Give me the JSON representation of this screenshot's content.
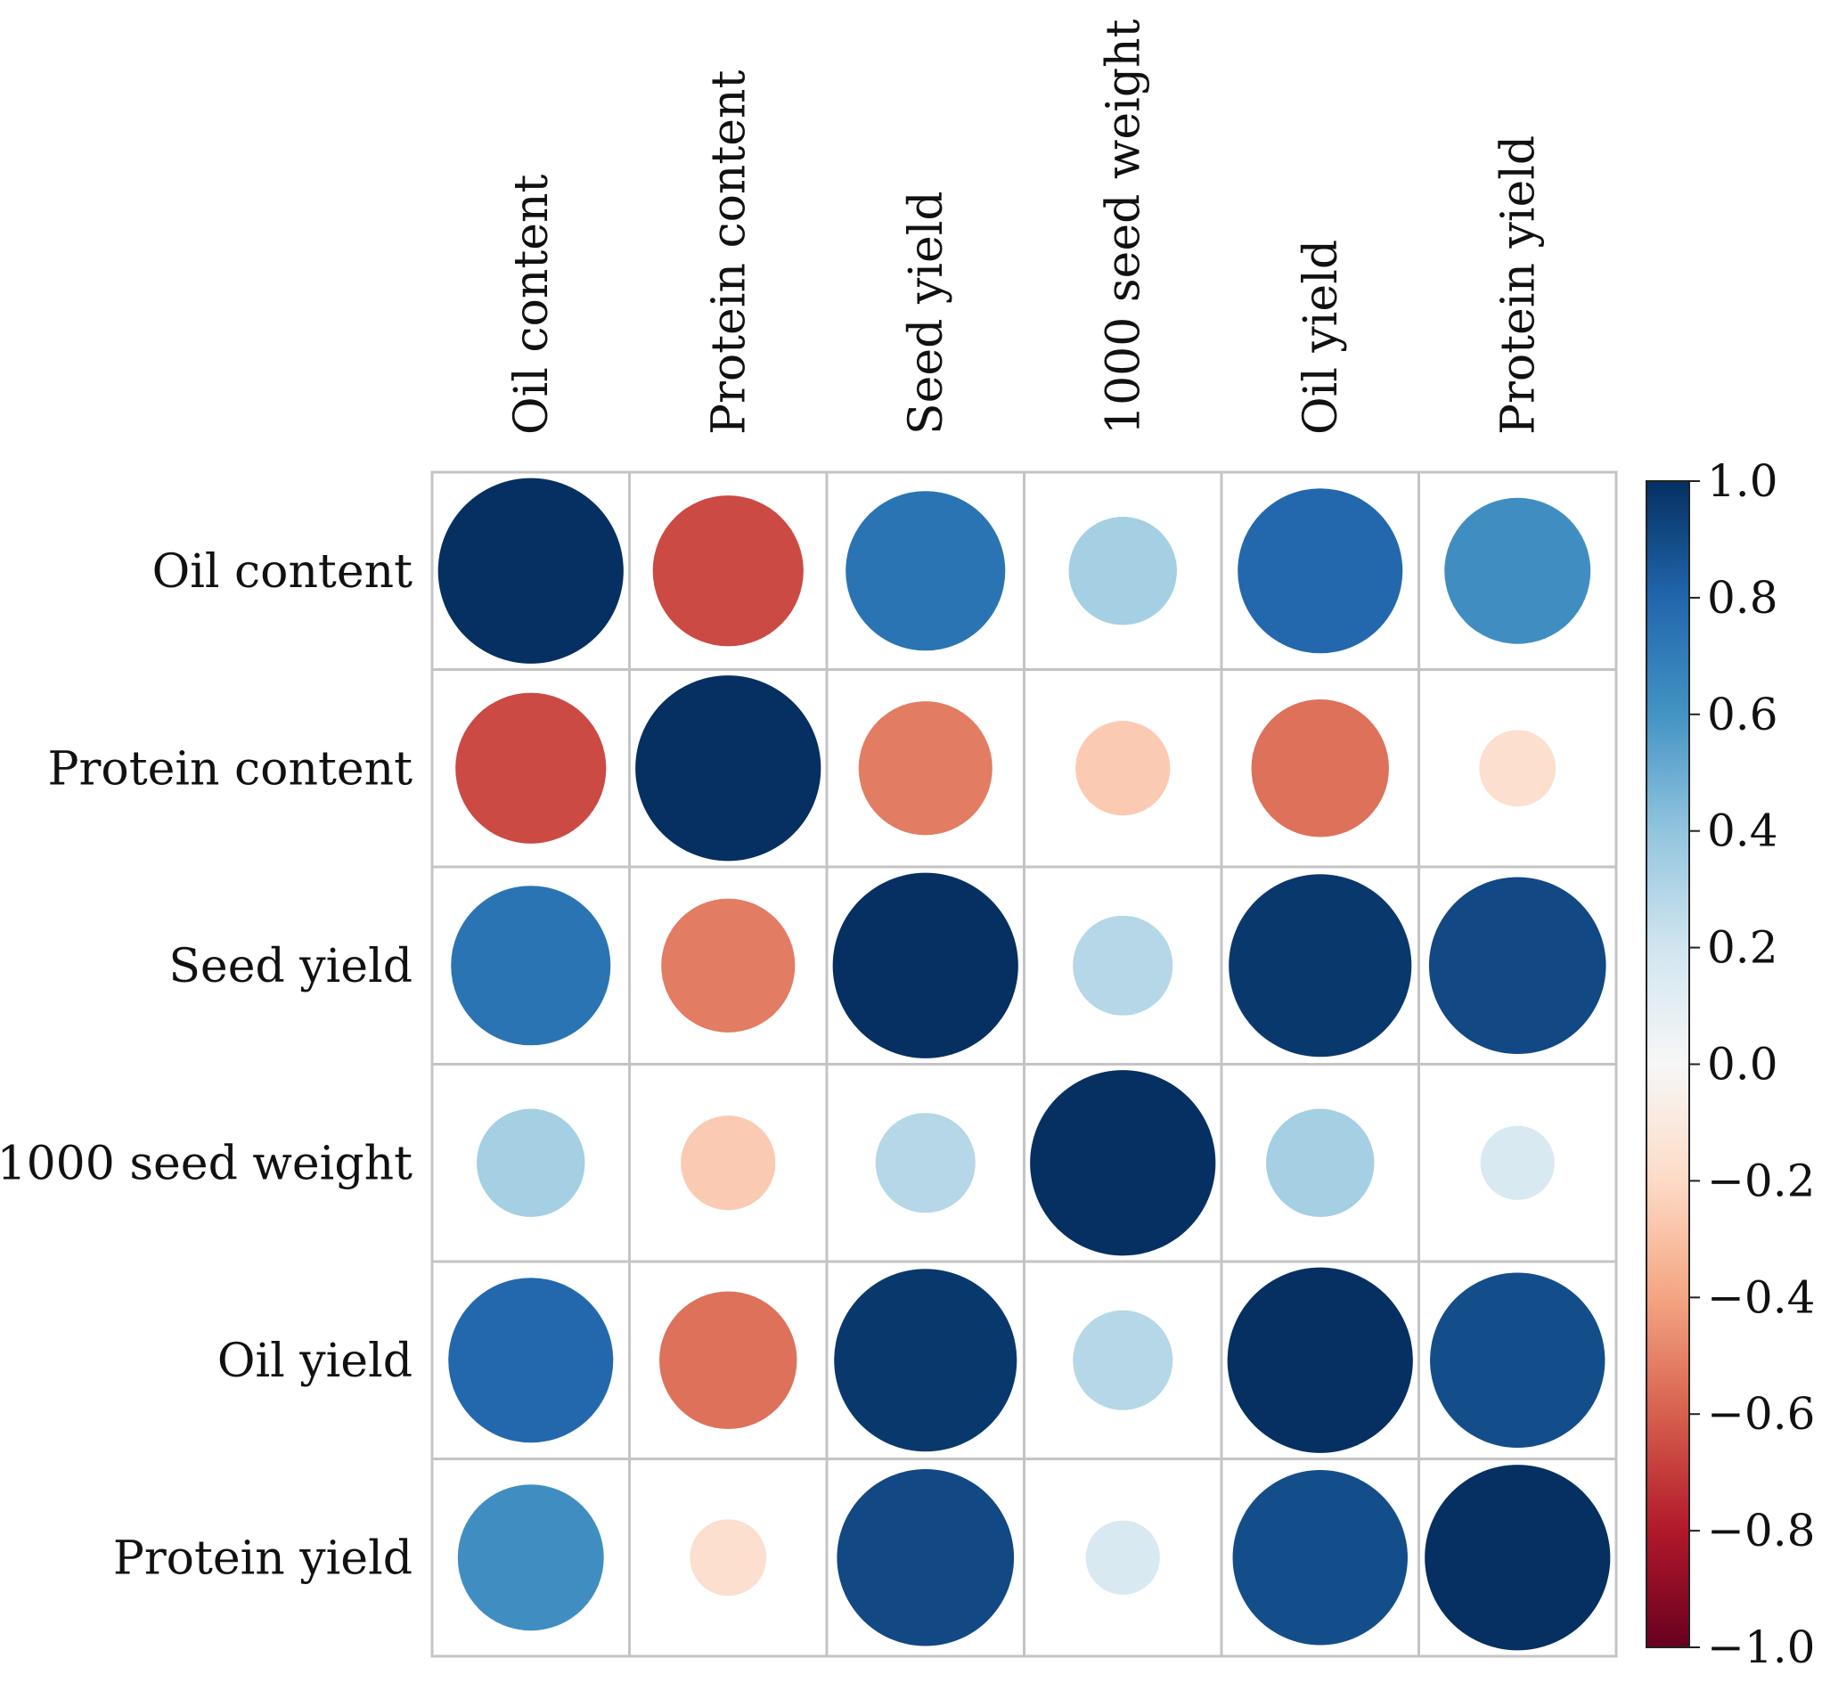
{
  "chart_data": {
    "type": "heatmap",
    "subtype": "correlation-circle-matrix",
    "title": "",
    "variables": [
      "Oil content",
      "Protein content",
      "Seed yield",
      "1000 seed weight",
      "Oil yield",
      "Protein yield"
    ],
    "matrix": [
      [
        1.0,
        -0.66,
        0.74,
        0.34,
        0.79,
        0.62
      ],
      [
        -0.66,
        1.0,
        -0.52,
        -0.26,
        -0.55,
        -0.17
      ],
      [
        0.74,
        -0.52,
        1.0,
        0.29,
        0.97,
        0.91
      ],
      [
        0.34,
        -0.26,
        0.29,
        1.0,
        0.34,
        0.16
      ],
      [
        0.79,
        -0.55,
        0.97,
        0.29,
        1.0,
        0.89
      ],
      [
        0.62,
        -0.17,
        0.91,
        0.16,
        0.89,
        1.0
      ]
    ],
    "colorbar": {
      "min": -1.0,
      "max": 1.0,
      "ticks": [
        1.0,
        0.8,
        0.6,
        0.4,
        0.2,
        0.0,
        -0.2,
        -0.4,
        -0.6,
        -0.8,
        -1.0
      ],
      "tick_labels": [
        "1.0",
        "0.8",
        "0.6",
        "0.4",
        "0.2",
        "0.0",
        "−0.2",
        "−0.4",
        "−0.6",
        "−0.8",
        "−1.0"
      ],
      "colormap": "RdBu",
      "stops": [
        "#67001f",
        "#b2182b",
        "#d6604d",
        "#f4a582",
        "#fddbc7",
        "#f7f7f7",
        "#d1e5f0",
        "#92c5de",
        "#4393c3",
        "#2166ac",
        "#053061"
      ]
    },
    "grid": true,
    "legend": "right"
  }
}
